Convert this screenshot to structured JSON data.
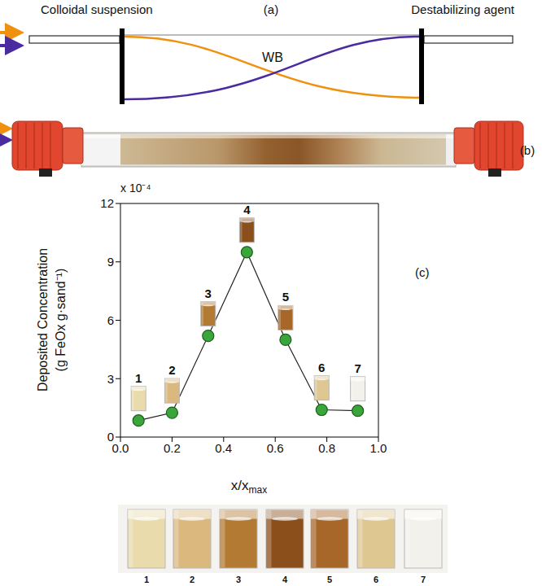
{
  "title_row": {
    "left": "Colloidal suspension",
    "center": "(a)",
    "right": "Destabilizing agent"
  },
  "panel_a": {
    "label": "WB",
    "suspension_color": "#f0900f",
    "agent_color": "#4a2ba0"
  },
  "panel_b": {
    "label": "(b)"
  },
  "chart_data": {
    "type": "line",
    "panel_label": "(c)",
    "y_label": [
      "Deposited Concentration",
      "(g FeOx g·sand⁻¹)"
    ],
    "y_multiplier": "x 10⁻⁴",
    "x_label": "x/x",
    "x_label_subscript": "max",
    "x": [
      0.07,
      0.2,
      0.34,
      0.49,
      0.64,
      0.78,
      0.92
    ],
    "values": [
      0.85,
      1.25,
      5.2,
      9.5,
      5.0,
      1.4,
      1.35
    ],
    "point_labels": [
      "1",
      "2",
      "3",
      "4",
      "5",
      "6",
      "7"
    ],
    "color": "#3aa53a",
    "marker": "circle",
    "xlim": [
      0,
      1
    ],
    "xticks": [
      {
        "value": 0,
        "label": "0.0"
      },
      0.2,
      0.4,
      0.6,
      0.8,
      {
        "value": 1,
        "label": "1.0"
      }
    ],
    "ylim": [
      0,
      12
    ],
    "yticks": [
      0,
      3,
      6,
      9,
      12
    ]
  },
  "cuvettes": {
    "labels": [
      "1",
      "2",
      "3",
      "4",
      "5",
      "6",
      "7"
    ],
    "colors": [
      "#e9dbab",
      "#dbb97e",
      "#b27a32",
      "#8b4f1b",
      "#a66729",
      "#dfc792",
      "#f3f1ec"
    ]
  }
}
